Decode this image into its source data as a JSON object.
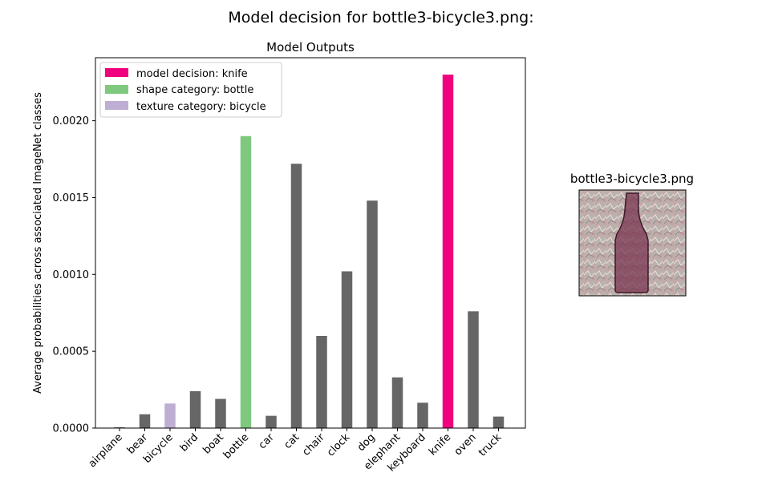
{
  "figure": {
    "suptitle": "Model decision for bottle3-bicycle3.png:"
  },
  "chart_data": {
    "type": "bar",
    "title": "Model Outputs",
    "xlabel": "",
    "ylabel": "Average probabilities across associated ImageNet classes",
    "ylim": [
      0,
      0.00241
    ],
    "yticks": [
      0.0,
      0.0005,
      0.001,
      0.0015,
      0.002
    ],
    "ytick_labels": [
      "0.0000",
      "0.0005",
      "0.0010",
      "0.0015",
      "0.0020"
    ],
    "grid": false,
    "legend_position": "top-left",
    "categories": [
      "airplane",
      "bear",
      "bicycle",
      "bird",
      "boat",
      "bottle",
      "car",
      "cat",
      "chair",
      "clock",
      "dog",
      "elephant",
      "keyboard",
      "knife",
      "oven",
      "truck"
    ],
    "values": [
      5e-06,
      9e-05,
      0.00016,
      0.00024,
      0.00019,
      0.0019,
      8e-05,
      0.00172,
      0.0006,
      0.00102,
      0.00148,
      0.00033,
      0.000165,
      0.0023,
      0.00076,
      7.5e-05
    ],
    "colors": {
      "default": "#666666",
      "model_decision": "#f0027f",
      "shape": "#7fc97f",
      "texture": "#beaed4"
    },
    "highlights": {
      "model_decision": "knife",
      "shape": "bottle",
      "texture": "bicycle"
    },
    "legend": [
      {
        "label": "model decision: knife",
        "color_key": "model_decision"
      },
      {
        "label": "shape category: bottle",
        "color_key": "shape"
      },
      {
        "label": "texture category: bicycle",
        "color_key": "texture"
      }
    ]
  },
  "image_panel": {
    "title": "bottle3-bicycle3.png",
    "alt": "stylized bottle image"
  }
}
